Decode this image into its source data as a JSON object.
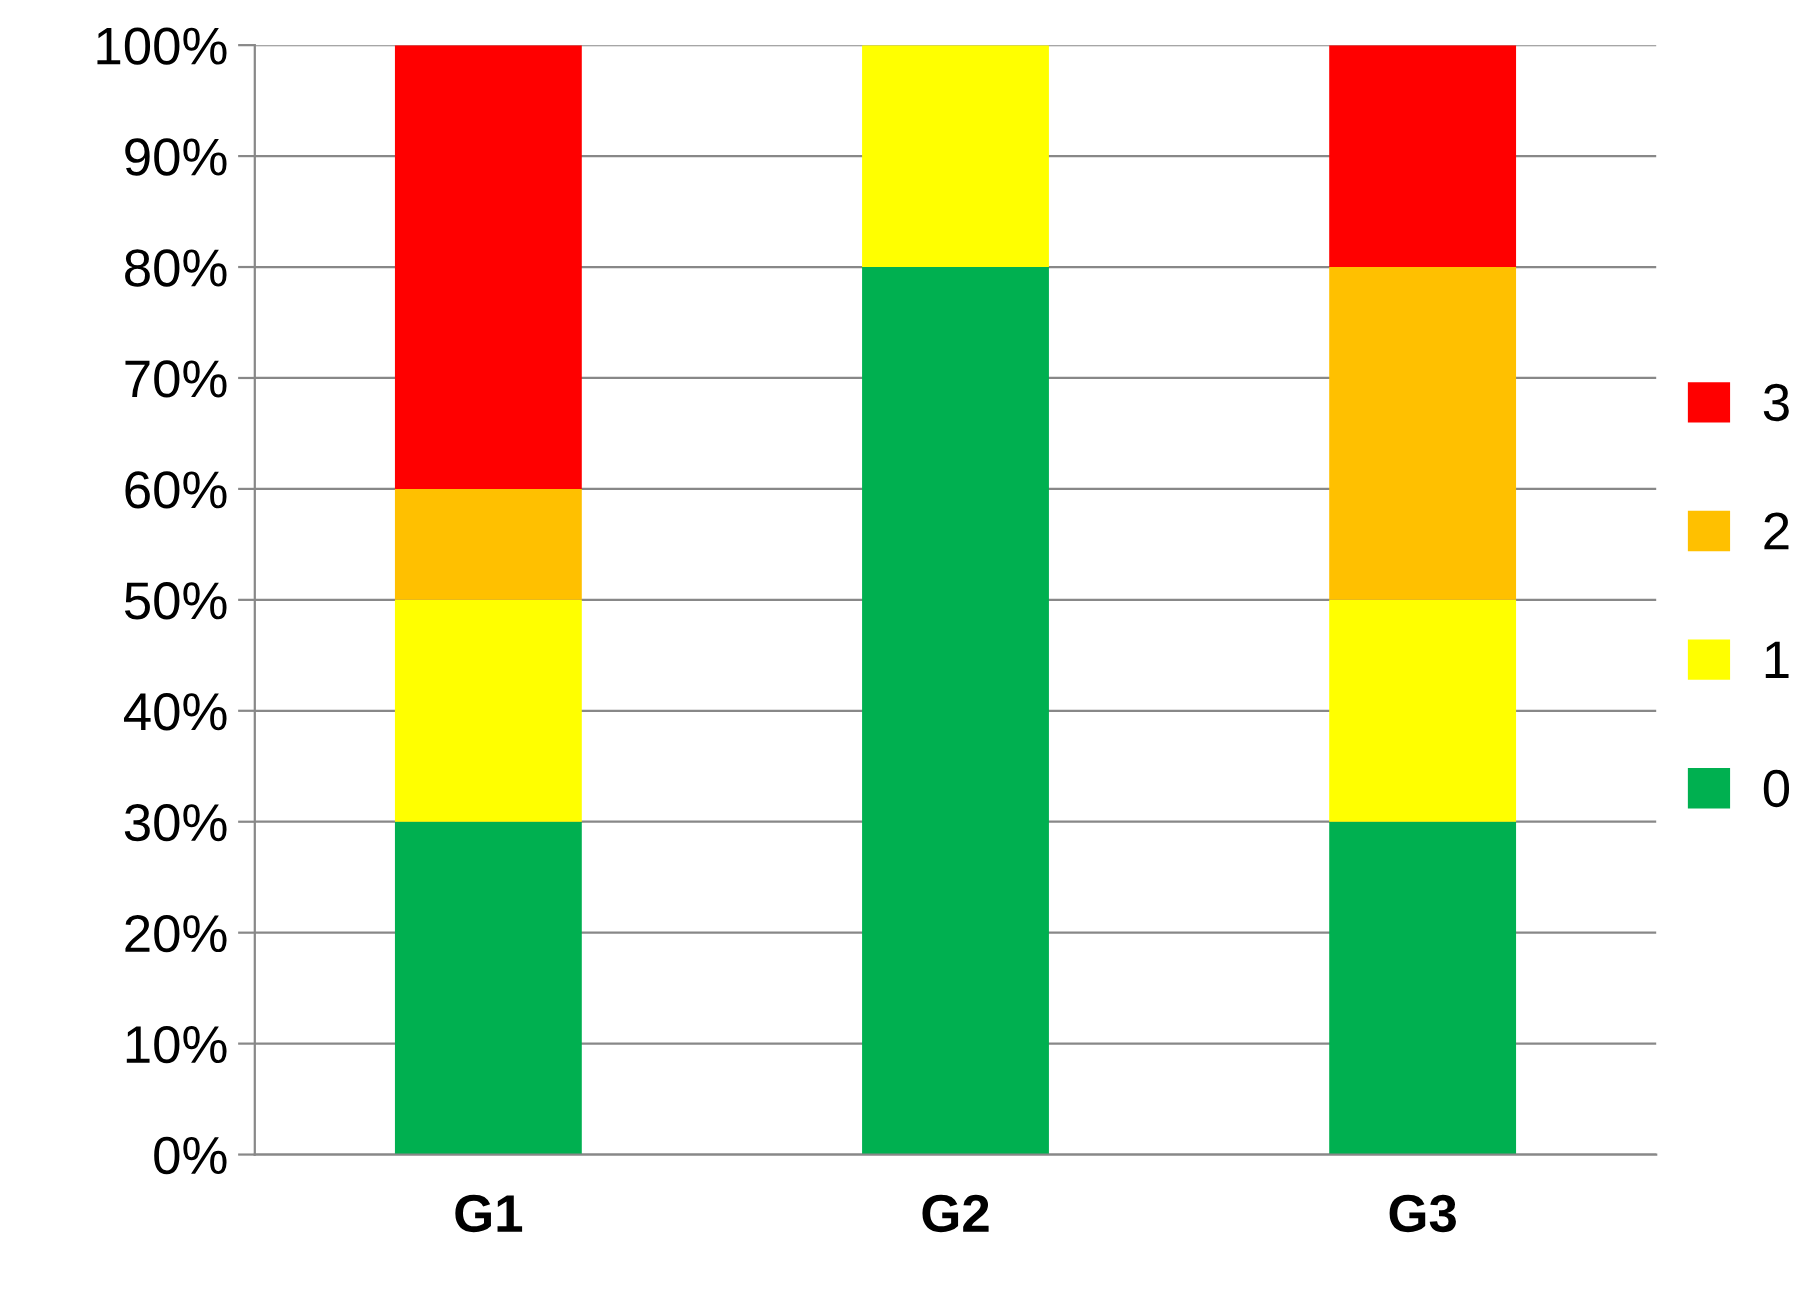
{
  "chart_data": {
    "type": "bar",
    "stacked": true,
    "categories": [
      "G1",
      "G2",
      "G3"
    ],
    "series": [
      {
        "name": "0",
        "color": "#00b050",
        "values": [
          30,
          80,
          30
        ]
      },
      {
        "name": "1",
        "color": "#ffff00",
        "values": [
          20,
          20,
          20
        ]
      },
      {
        "name": "2",
        "color": "#ffc000",
        "values": [
          10,
          0,
          30
        ]
      },
      {
        "name": "3",
        "color": "#ff0000",
        "values": [
          40,
          0,
          20
        ]
      }
    ],
    "ylim": [
      0,
      100
    ],
    "yticks": [
      {
        "value": 0,
        "label": "0%"
      },
      {
        "value": 10,
        "label": "10%"
      },
      {
        "value": 20,
        "label": "20%"
      },
      {
        "value": 30,
        "label": "30%"
      },
      {
        "value": 40,
        "label": "40%"
      },
      {
        "value": 50,
        "label": "50%"
      },
      {
        "value": 60,
        "label": "60%"
      },
      {
        "value": 70,
        "label": "70%"
      },
      {
        "value": 80,
        "label": "80%"
      },
      {
        "value": 90,
        "label": "90%"
      },
      {
        "value": 100,
        "label": "100%"
      }
    ],
    "grid": "y",
    "legend": "right"
  }
}
